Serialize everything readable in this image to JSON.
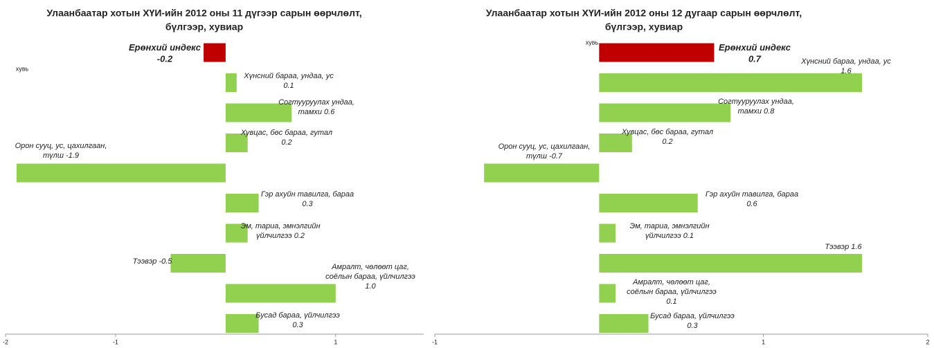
{
  "chart_data": [
    {
      "type": "barh",
      "title": [
        "Улаанбаатар хотын  ХҮИ-ийн 2012 оны 11 дүгээр сарын өөрчлөлт,",
        "бүлгээр, хувиар"
      ],
      "y_label": "хувь",
      "categories": [
        [
          "Ерөнхий индекс"
        ],
        [
          "Хүнсний бараа, ундаа, ус"
        ],
        [
          "Согтууруулах ундаа,",
          "тамхи"
        ],
        [
          "Хувцас, бөс бараа, гутал"
        ],
        [
          "Орон сууц, ус, цахилгаан,",
          "түлш"
        ],
        [
          "Гэр ахуйн тавилга, бараа"
        ],
        [
          "Эм, тариа, эмнэлгийн",
          "үйлчилгээ"
        ],
        [
          "Тээвэр"
        ],
        [
          "Амралт, чөлөөт цаг,",
          "соёлын бараа, үйлчилгээ"
        ],
        [
          "Бусад бараа, үйлчилгээ"
        ]
      ],
      "values": [
        -0.2,
        0.1,
        0.6,
        0.2,
        -1.9,
        0.3,
        0.2,
        -0.5,
        1.0,
        0.3
      ],
      "value_labels": [
        "-0.2",
        "0.1",
        "0.6",
        "0.2",
        "-1.9",
        "0.3",
        "0.2",
        "-0.5",
        "1.0",
        "0.3"
      ],
      "colors": [
        "#c00000",
        "#92d050",
        "#92d050",
        "#92d050",
        "#92d050",
        "#92d050",
        "#92d050",
        "#92d050",
        "#92d050",
        "#92d050"
      ],
      "xlim": [
        -2,
        1.8
      ],
      "xticks": [
        -2,
        -1,
        1
      ]
    },
    {
      "type": "barh",
      "title": [
        "Улаанбаатар  хотын  ХҮИ-ийн  2012 оны 12 дугаар сарын өөрчлөлт,",
        "бүлгээр, хувиар"
      ],
      "y_label": "хувь",
      "categories": [
        [
          "Ерөнхий индекс"
        ],
        [
          "Хүнсний бараа,  ундаа, ус"
        ],
        [
          "Согтууруулах ундаа,",
          "тамхи"
        ],
        [
          "Хувцас, бөс бараа,  гутал"
        ],
        [
          "Орон сууц, ус, цахилгаан,",
          "түлш"
        ],
        [
          "Гэр ахуйн тавилга,  бараа"
        ],
        [
          "Эм, тариа, эмнэлгийн",
          "үйлчилгээ"
        ],
        [
          "Тээвэр"
        ],
        [
          "Амралт,  чөлөөт цаг,",
          "соёлын бараа,  үйлчилгээ"
        ],
        [
          "Бусад бараа,  үйлчилгээ"
        ]
      ],
      "values": [
        0.7,
        1.6,
        0.8,
        0.2,
        -0.7,
        0.6,
        0.1,
        1.6,
        0.1,
        0.3
      ],
      "colors": [
        "#c00000",
        "#92d050",
        "#92d050",
        "#92d050",
        "#92d050",
        "#92d050",
        "#92d050",
        "#92d050",
        "#92d050",
        "#92d050"
      ],
      "xlim": [
        -1,
        2
      ],
      "xticks": [
        -1,
        1,
        2
      ]
    }
  ]
}
